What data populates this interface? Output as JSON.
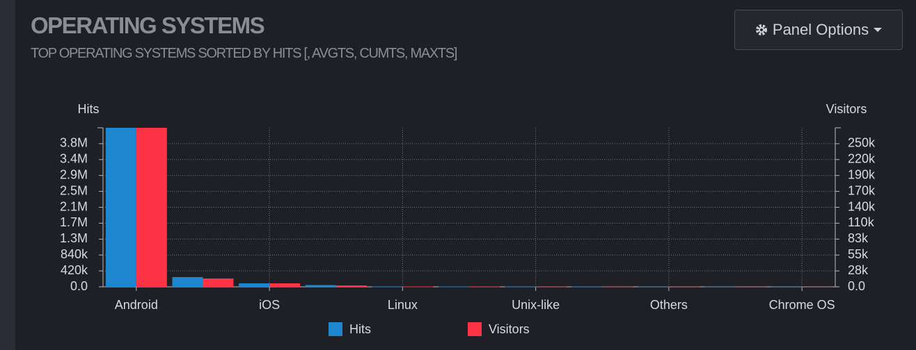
{
  "chart_data": {
    "type": "bar",
    "title": "OPERATING SYSTEMS",
    "subtitle": "TOP OPERATING SYSTEMS SORTED BY HITS [, AVGTS, CUMTS, MAXTS]",
    "button": "Panel Options",
    "y_label": "Hits",
    "y2_label": "Visitors",
    "categories": [
      "Android",
      null,
      "iOS",
      null,
      "Linux",
      null,
      "Unix-like",
      null,
      "Others",
      null,
      "Chrome OS"
    ],
    "series": [
      {
        "name": "Hits",
        "color": "#1f85cf",
        "axis": "y",
        "values": [
          4200000,
          257000,
          92000,
          46000,
          10000,
          9000,
          8000,
          7000,
          6000,
          5000,
          4000
        ]
      },
      {
        "name": "Visitors",
        "color": "#ff3346",
        "axis": "y2",
        "values": [
          277000,
          14500,
          6000,
          2400,
          600,
          500,
          400,
          350,
          300,
          250,
          200
        ]
      }
    ],
    "ylim": [
      0,
      4200000
    ],
    "yticks": [
      {
        "value": 0,
        "label": "0.0"
      },
      {
        "value": 420000,
        "label": "420k"
      },
      {
        "value": 840000,
        "label": "840k"
      },
      {
        "value": 1260000,
        "label": "1.3M"
      },
      {
        "value": 1680000,
        "label": "1.7M"
      },
      {
        "value": 2100000,
        "label": "2.1M"
      },
      {
        "value": 2520000,
        "label": "2.5M"
      },
      {
        "value": 2940000,
        "label": "2.9M"
      },
      {
        "value": 3360000,
        "label": "3.4M"
      },
      {
        "value": 3780000,
        "label": "3.8M"
      }
    ],
    "y2lim": [
      0,
      277000
    ],
    "y2ticks": [
      {
        "value": 0,
        "label": "0.0"
      },
      {
        "value": 27700,
        "label": "28k"
      },
      {
        "value": 55400,
        "label": "55k"
      },
      {
        "value": 83100,
        "label": "83k"
      },
      {
        "value": 110800,
        "label": "110k"
      },
      {
        "value": 138500,
        "label": "140k"
      },
      {
        "value": 166200,
        "label": "170k"
      },
      {
        "value": 193900,
        "label": "190k"
      },
      {
        "value": 221600,
        "label": "220k"
      },
      {
        "value": 249300,
        "label": "250k"
      }
    ],
    "grid": true
  }
}
